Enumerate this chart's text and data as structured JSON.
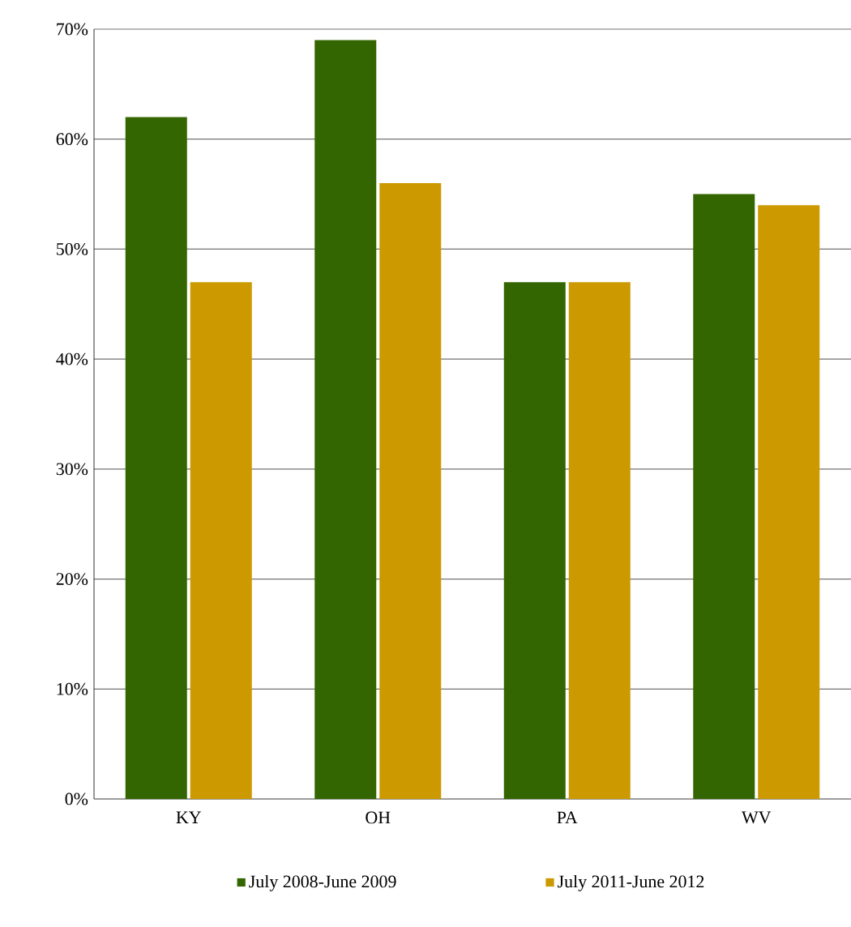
{
  "chart_data": {
    "type": "bar",
    "categories": [
      "KY",
      "OH",
      "PA",
      "WV"
    ],
    "series": [
      {
        "name": "July 2008-June 2009",
        "color": "#336600",
        "values": [
          62,
          69,
          47,
          55
        ]
      },
      {
        "name": "July 2011-June 2012",
        "color": "#cc9900",
        "values": [
          47,
          56,
          47,
          54
        ]
      }
    ],
    "ylim": [
      0,
      70
    ],
    "yticks": [
      {
        "value": 0,
        "label": "0%"
      },
      {
        "value": 10,
        "label": "10%"
      },
      {
        "value": 20,
        "label": "20%"
      },
      {
        "value": 30,
        "label": "30%"
      },
      {
        "value": 40,
        "label": "40%"
      },
      {
        "value": 50,
        "label": "50%"
      },
      {
        "value": 60,
        "label": "60%"
      },
      {
        "value": 70,
        "label": "70%"
      }
    ],
    "grid": "y",
    "legend": "bottom"
  }
}
